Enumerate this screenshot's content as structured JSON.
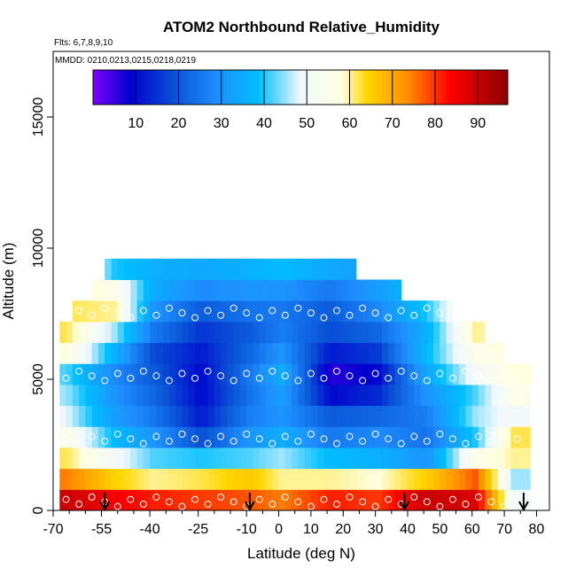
{
  "chart_data": {
    "type": "heatmap",
    "title": "ATOM2 Northbound Relative_Humidity",
    "flights_label": "Flts: 6,7,8,9,10",
    "dates_label": "MMDD: 0210,0213,0215,0218,0219",
    "xlabel": "Latitude (deg N)",
    "ylabel": "Altitude (m)",
    "xlim": [
      -70,
      84
    ],
    "ylim": [
      0,
      17500
    ],
    "x_ticks": [
      "-70",
      "-55",
      "-40",
      "-25",
      "-10",
      "0",
      "10",
      "20",
      "30",
      "40",
      "50",
      "60",
      "70",
      "80"
    ],
    "x_tick_values": [
      -70,
      -55,
      -40,
      -25,
      -10,
      0,
      10,
      20,
      30,
      40,
      50,
      60,
      70,
      80
    ],
    "x_minor_ticks": [
      -65,
      -60,
      -50,
      -45,
      -35,
      -30,
      -20,
      -15,
      -5,
      5,
      15,
      25,
      35,
      45,
      55,
      65,
      75
    ],
    "y_ticks": [
      "0",
      "5000",
      "10000",
      "15000"
    ],
    "y_tick_values": [
      0,
      5000,
      10000,
      15000
    ],
    "colorbar": {
      "ticks": [
        "10",
        "20",
        "30",
        "40",
        "50",
        "60",
        "70",
        "80",
        "90"
      ],
      "tick_values": [
        10,
        20,
        30,
        40,
        50,
        60,
        70,
        80,
        90
      ],
      "range": [
        0,
        97
      ],
      "colors": [
        "#7f00ff",
        "#0000cd",
        "#0a55d8",
        "#1e90ff",
        "#00bfff",
        "#87ceeb",
        "#f0f8ff",
        "#ffffe0",
        "#ffd700",
        "#ff8c00",
        "#ff0000",
        "#8b0000"
      ]
    },
    "arrows_latitude": [
      -54,
      -9,
      39,
      76
    ],
    "rh_column_profiles": [
      {
        "lat": -67,
        "rh": [
          90,
          75,
          62,
          55,
          48,
          45,
          42,
          58,
          62
        ]
      },
      {
        "lat": -52,
        "rh": [
          85,
          65,
          50,
          38,
          32,
          30,
          28,
          36,
          45,
          60,
          55,
          40
        ]
      },
      {
        "lat": -40,
        "rh": [
          82,
          60,
          42,
          30,
          25,
          22,
          20,
          18,
          25,
          30,
          35,
          36
        ]
      },
      {
        "lat": -25,
        "rh": [
          80,
          62,
          40,
          18,
          12,
          10,
          10,
          12,
          15,
          20,
          28,
          34
        ]
      },
      {
        "lat": -10,
        "rh": [
          78,
          66,
          42,
          30,
          26,
          24,
          25,
          22,
          20,
          24,
          30,
          36
        ]
      },
      {
        "lat": 0,
        "rh": [
          75,
          60,
          45,
          35,
          30,
          32,
          35,
          30,
          26,
          25,
          30,
          38
        ]
      },
      {
        "lat": 15,
        "rh": [
          82,
          60,
          38,
          25,
          20,
          10,
          6,
          12,
          18,
          20,
          25,
          34
        ]
      },
      {
        "lat": 30,
        "rh": [
          80,
          58,
          36,
          28,
          22,
          14,
          10,
          16,
          22,
          28,
          32
        ]
      },
      {
        "lat": 45,
        "rh": [
          90,
          65,
          30,
          24,
          26,
          30,
          34,
          38,
          36,
          40
        ]
      },
      {
        "lat": 60,
        "rh": [
          88,
          78,
          55,
          40,
          45,
          42,
          50,
          55,
          60
        ]
      },
      {
        "lat": 72,
        "rh": [
          50,
          45,
          60,
          62,
          50,
          55,
          58
        ]
      }
    ]
  }
}
